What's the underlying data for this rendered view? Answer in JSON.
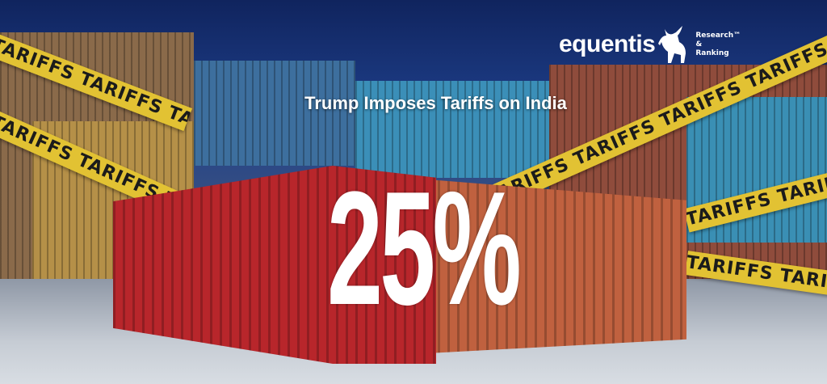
{
  "banner": {
    "title": "Trump Imposes Tariffs on India",
    "headline_figure": "25%",
    "tape_text": "TARIFFS TARIFFS TARIFFS TARIFFS TARIFFS TARIFFS TARIFFS",
    "colors": {
      "tape": "#e2c233",
      "red_container": "#b8262b",
      "orange_container": "#c0613f",
      "sky": "#10245e"
    }
  },
  "logo": {
    "name": "equentis",
    "tagline_line1": "Research™",
    "tagline_line2": "&",
    "tagline_line3": "Ranking",
    "icon": "bull-icon"
  }
}
